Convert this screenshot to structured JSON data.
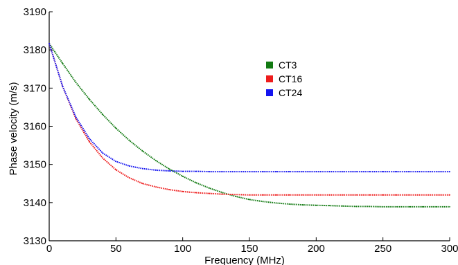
{
  "chart_data": {
    "type": "line",
    "title": "",
    "xlabel": "Frequency (MHz)",
    "ylabel": "Phase velocity (m/s)",
    "xlim": [
      0,
      300
    ],
    "ylim": [
      3130,
      3190
    ],
    "xticks": [
      0,
      50,
      100,
      150,
      200,
      250,
      300
    ],
    "yticks": [
      3130,
      3140,
      3150,
      3160,
      3170,
      3180,
      3190
    ],
    "grid": false,
    "legend_position": "top-center",
    "series": [
      {
        "name": "CT3",
        "color": "#127a12",
        "x": [
          0,
          10,
          20,
          30,
          40,
          50,
          60,
          70,
          80,
          90,
          100,
          110,
          120,
          130,
          140,
          150,
          160,
          170,
          180,
          190,
          200,
          210,
          220,
          230,
          240,
          250,
          260,
          270,
          280,
          290,
          300
        ],
        "y": [
          3181.7,
          3176.5,
          3171.5,
          3167.1,
          3163.1,
          3159.5,
          3156.3,
          3153.5,
          3151.0,
          3148.8,
          3146.9,
          3145.2,
          3143.8,
          3142.6,
          3141.6,
          3140.8,
          3140.3,
          3139.9,
          3139.6,
          3139.4,
          3139.3,
          3139.2,
          3139.1,
          3139.0,
          3139.0,
          3138.9,
          3138.9,
          3138.9,
          3138.9,
          3138.9,
          3138.9
        ]
      },
      {
        "name": "CT16",
        "color": "#ee1c1c",
        "x": [
          0,
          10,
          20,
          30,
          40,
          50,
          60,
          70,
          80,
          90,
          100,
          110,
          120,
          130,
          140,
          150,
          160,
          170,
          180,
          190,
          200,
          210,
          220,
          230,
          240,
          250,
          260,
          270,
          280,
          290,
          300
        ],
        "y": [
          3181.7,
          3170.5,
          3162.0,
          3156.0,
          3151.7,
          3148.6,
          3146.5,
          3145.0,
          3144.1,
          3143.4,
          3142.9,
          3142.6,
          3142.4,
          3142.2,
          3142.1,
          3142.0,
          3142.0,
          3142.0,
          3142.0,
          3142.0,
          3142.0,
          3142.0,
          3142.0,
          3142.0,
          3142.0,
          3142.0,
          3142.0,
          3142.0,
          3142.0,
          3142.0,
          3142.0
        ]
      },
      {
        "name": "CT24",
        "color": "#1414f0",
        "x": [
          0,
          10,
          20,
          30,
          40,
          50,
          60,
          70,
          80,
          90,
          100,
          110,
          120,
          130,
          140,
          150,
          160,
          170,
          180,
          190,
          200,
          210,
          220,
          230,
          240,
          250,
          260,
          270,
          280,
          290,
          300
        ],
        "y": [
          3181.7,
          3170.5,
          3162.4,
          3156.8,
          3153.0,
          3150.8,
          3149.6,
          3148.9,
          3148.5,
          3148.3,
          3148.2,
          3148.2,
          3148.1,
          3148.1,
          3148.1,
          3148.1,
          3148.1,
          3148.1,
          3148.1,
          3148.1,
          3148.1,
          3148.1,
          3148.1,
          3148.1,
          3148.1,
          3148.1,
          3148.1,
          3148.1,
          3148.1,
          3148.1,
          3148.1
        ]
      }
    ]
  }
}
